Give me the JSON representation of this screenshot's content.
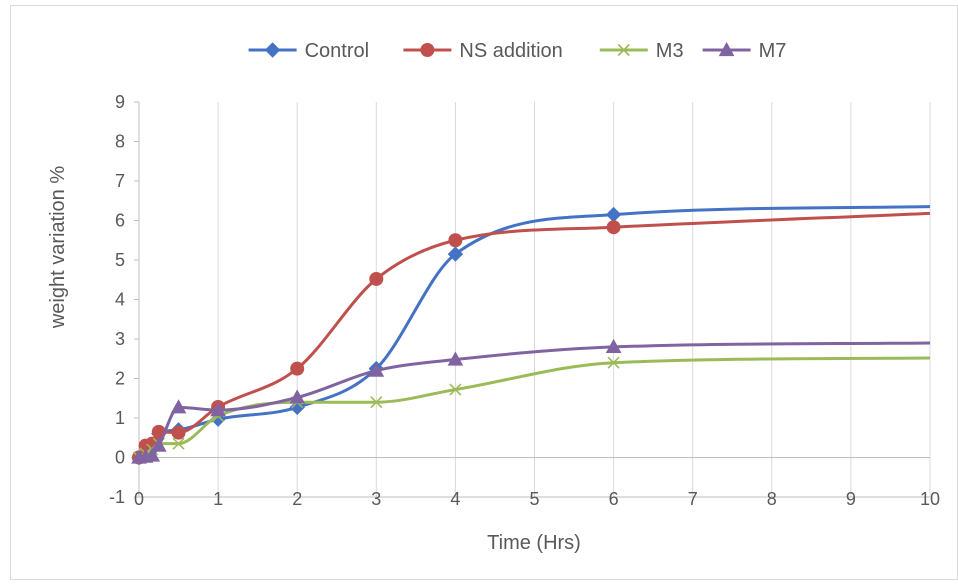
{
  "chart_data": {
    "type": "line",
    "title": "",
    "xlabel": "Time (Hrs)",
    "ylabel": "weight variation %",
    "xlim": [
      0,
      10
    ],
    "ylim": [
      -1,
      9
    ],
    "x_ticks": [
      0,
      1,
      2,
      3,
      4,
      5,
      6,
      7,
      8,
      9,
      10
    ],
    "y_ticks": [
      -1,
      0,
      1,
      2,
      3,
      4,
      5,
      6,
      7,
      8,
      9
    ],
    "grid": "vertical",
    "legend": "top",
    "series": [
      {
        "name": "Control",
        "color": "#4472C4",
        "marker": "diamond",
        "x": [
          0,
          0.083,
          0.167,
          0.25,
          0.5,
          1,
          2,
          3,
          4,
          6,
          10
        ],
        "y": [
          0,
          0.1,
          0.3,
          0.6,
          0.7,
          0.97,
          1.27,
          2.25,
          5.15,
          6.15,
          6.35
        ]
      },
      {
        "name": "NS addition",
        "color": "#C0504D",
        "marker": "circle",
        "x": [
          0,
          0.083,
          0.167,
          0.25,
          0.5,
          1,
          2,
          3,
          4,
          6,
          10
        ],
        "y": [
          0,
          0.3,
          0.35,
          0.65,
          0.63,
          1.28,
          2.25,
          4.52,
          5.5,
          5.83,
          6.18
        ]
      },
      {
        "name": "M3",
        "color": "#9BBB59",
        "marker": "x",
        "x": [
          0,
          0.083,
          0.167,
          0.25,
          0.5,
          1,
          2,
          3,
          4,
          6,
          10
        ],
        "y": [
          0,
          0.1,
          0.2,
          0.35,
          0.35,
          1.05,
          1.4,
          1.4,
          1.72,
          2.4,
          2.52
        ]
      },
      {
        "name": "M7",
        "color": "#8064A2",
        "marker": "triangle",
        "x": [
          0,
          0.083,
          0.167,
          0.25,
          0.5,
          1,
          2,
          3,
          4,
          6,
          10
        ],
        "y": [
          0,
          0.02,
          0.05,
          0.3,
          1.27,
          1.2,
          1.52,
          2.2,
          2.48,
          2.8,
          2.9
        ]
      }
    ]
  }
}
